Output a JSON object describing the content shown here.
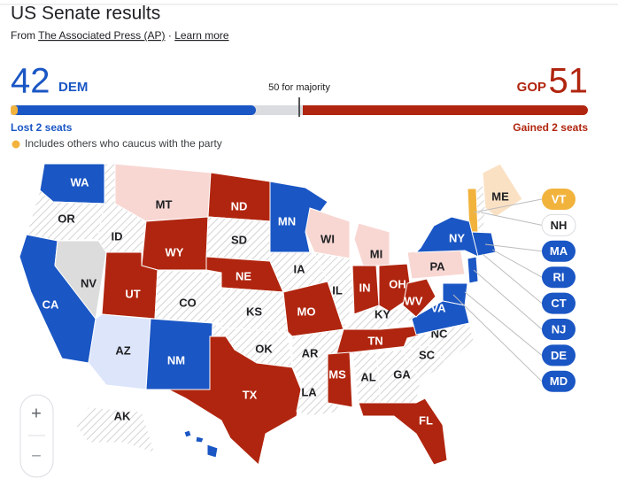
{
  "header": {
    "title": "US Senate results",
    "source_prefix": "From",
    "source": "The Associated Press (AP)",
    "separator": "·",
    "learn_more": "Learn more"
  },
  "tally": {
    "dem": {
      "seats": 42,
      "party": "DEM",
      "change": "Lost 2 seats"
    },
    "gop": {
      "seats": 51,
      "party": "GOP",
      "change": "Gained 2 seats"
    },
    "majority": "50 for majority",
    "note": "Includes others who caucus with the party"
  },
  "map": {
    "states": [
      "WA",
      "OR",
      "CA",
      "NV",
      "ID",
      "MT",
      "WY",
      "UT",
      "CO",
      "AZ",
      "NM",
      "ND",
      "SD",
      "NE",
      "KS",
      "OK",
      "TX",
      "MN",
      "IA",
      "MO",
      "AR",
      "LA",
      "WI",
      "IL",
      "MI",
      "IN",
      "OH",
      "KY",
      "TN",
      "MS",
      "AL",
      "GA",
      "FL",
      "SC",
      "NC",
      "VA",
      "WV",
      "PA",
      "NY",
      "ME",
      "AK",
      "HI"
    ],
    "callouts": [
      "VT",
      "NH",
      "MA",
      "RI",
      "CT",
      "NJ",
      "DE",
      "MD"
    ]
  },
  "zoom": {
    "in": "+",
    "out": "−"
  }
}
